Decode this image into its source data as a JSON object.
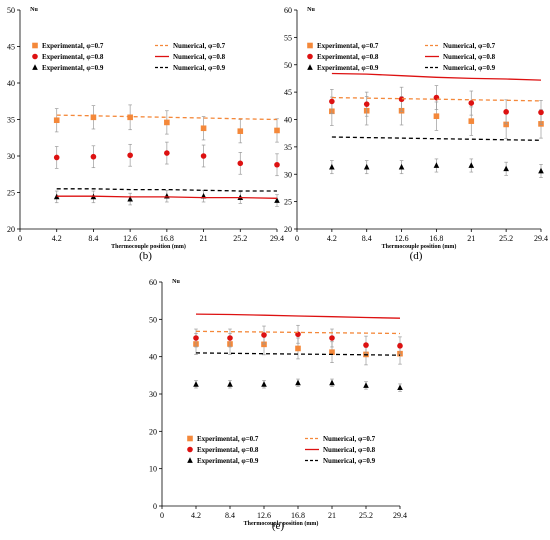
{
  "chart_data": [
    {
      "id": "b",
      "type": "scatter",
      "caption": "(b)",
      "ylabel": "Nu",
      "xlabel": "Thermocouple position (mm)",
      "xlim": [
        0,
        29.4
      ],
      "ylim": [
        20,
        50
      ],
      "xticks": [
        "0",
        "4.2",
        "8.4",
        "12.6",
        "16.8",
        "21",
        "25.2",
        "29.4"
      ],
      "yticks": [
        "20",
        "25",
        "30",
        "35",
        "40",
        "45",
        "50"
      ],
      "x": [
        4.2,
        8.4,
        12.6,
        16.8,
        21,
        25.2,
        29.4
      ],
      "series": [
        {
          "name": "Experimental, φ=0.7",
          "kind": "experimental",
          "marker": "square",
          "color": "#f4883a",
          "values": [
            34.9,
            35.3,
            35.3,
            34.6,
            33.8,
            33.4,
            33.5
          ],
          "err": [
            1.6,
            1.6,
            1.7,
            1.6,
            1.6,
            1.6,
            1.6
          ]
        },
        {
          "name": "Experimental, φ=0.8",
          "kind": "experimental",
          "marker": "circle",
          "color": "#dd1111",
          "values": [
            29.8,
            29.9,
            30.1,
            30.4,
            30.0,
            29.0,
            28.8
          ],
          "err": [
            1.5,
            1.5,
            1.5,
            1.5,
            1.5,
            1.5,
            1.5
          ]
        },
        {
          "name": "Experimental, φ=0.9",
          "kind": "experimental",
          "marker": "triangle",
          "color": "#000000",
          "values": [
            24.4,
            24.4,
            24.1,
            24.5,
            24.5,
            24.3,
            23.9
          ],
          "err": [
            0.8,
            0.8,
            0.8,
            0.8,
            0.8,
            0.8,
            0.8
          ]
        },
        {
          "name": "Numerical, φ=0.7",
          "kind": "numerical",
          "dash": "4,3",
          "color": "#f4883a",
          "values": [
            35.6,
            35.5,
            35.4,
            35.3,
            35.2,
            35.1,
            35.0
          ]
        },
        {
          "name": "Numerical, φ=0.8",
          "kind": "numerical",
          "dash": "",
          "color": "#dd1111",
          "values": [
            24.5,
            24.5,
            24.4,
            24.4,
            24.3,
            24.3,
            24.2
          ]
        },
        {
          "name": "Numerical, φ=0.9",
          "kind": "numerical",
          "dash": "4,3",
          "color": "#000000",
          "values": [
            25.5,
            25.5,
            25.4,
            25.4,
            25.3,
            25.2,
            25.2
          ]
        }
      ]
    },
    {
      "id": "d",
      "type": "scatter",
      "caption": "(d)",
      "ylabel": "Nu",
      "xlabel": "Thermocouple position (mm)",
      "xlim": [
        0,
        29.4
      ],
      "ylim": [
        20,
        60
      ],
      "xticks": [
        "0",
        "4.2",
        "8.4",
        "12.6",
        "16.8",
        "21",
        "25.2",
        "29.4"
      ],
      "yticks": [
        "20",
        "25",
        "30",
        "35",
        "40",
        "45",
        "50",
        "55",
        "60"
      ],
      "x": [
        4.2,
        8.4,
        12.6,
        16.8,
        21,
        25.2,
        29.4
      ],
      "series": [
        {
          "name": "Experimental, φ=0.7",
          "kind": "experimental",
          "marker": "square",
          "color": "#f4883a",
          "values": [
            41.5,
            41.6,
            41.6,
            40.6,
            39.7,
            39.1,
            39.2
          ],
          "err": [
            2.6,
            2.6,
            2.6,
            2.6,
            2.6,
            2.6,
            2.6
          ]
        },
        {
          "name": "Experimental, φ=0.8",
          "kind": "experimental",
          "marker": "circle",
          "color": "#dd1111",
          "values": [
            43.3,
            42.8,
            43.7,
            44.0,
            43.0,
            41.4,
            41.3
          ],
          "err": [
            2.2,
            2.2,
            2.2,
            2.2,
            2.2,
            2.2,
            2.2
          ]
        },
        {
          "name": "Experimental, φ=0.9",
          "kind": "experimental",
          "marker": "triangle",
          "color": "#000000",
          "values": [
            31.3,
            31.3,
            31.3,
            31.6,
            31.6,
            31.0,
            30.6
          ],
          "err": [
            1.2,
            1.2,
            1.2,
            1.2,
            1.2,
            1.2,
            1.2
          ]
        },
        {
          "name": "Numerical, φ=0.7",
          "kind": "numerical",
          "dash": "4,3",
          "color": "#f4883a",
          "values": [
            44.0,
            43.9,
            43.8,
            43.7,
            43.6,
            43.5,
            43.4
          ]
        },
        {
          "name": "Numerical, φ=0.8",
          "kind": "numerical",
          "dash": "",
          "color": "#dd1111",
          "values": [
            48.4,
            48.3,
            48.0,
            47.7,
            47.5,
            47.4,
            47.2
          ]
        },
        {
          "name": "Numerical, φ=0.9",
          "kind": "numerical",
          "dash": "4,3",
          "color": "#000000",
          "values": [
            36.8,
            36.7,
            36.6,
            36.5,
            36.4,
            36.3,
            36.2
          ]
        }
      ]
    },
    {
      "id": "e",
      "type": "scatter",
      "caption": "(e)",
      "ylabel": "Nu",
      "xlabel": "Thermocouple position (mm)",
      "xlim": [
        0,
        29.4
      ],
      "ylim": [
        0,
        60
      ],
      "xticks": [
        "0",
        "4.2",
        "8.4",
        "12.6",
        "16.8",
        "21",
        "25.2",
        "29.4"
      ],
      "yticks": [
        "0",
        "10",
        "20",
        "30",
        "40",
        "50",
        "60"
      ],
      "x": [
        4.2,
        8.4,
        12.6,
        16.8,
        21,
        25.2,
        29.4
      ],
      "series": [
        {
          "name": "Experimental, φ=0.7",
          "kind": "experimental",
          "marker": "square",
          "color": "#f4883a",
          "values": [
            43.4,
            43.4,
            43.3,
            42.2,
            41.2,
            40.6,
            40.8
          ],
          "err": [
            2.8,
            2.8,
            2.8,
            2.8,
            2.8,
            2.8,
            2.8
          ]
        },
        {
          "name": "Experimental, φ=0.8",
          "kind": "experimental",
          "marker": "circle",
          "color": "#dd1111",
          "values": [
            45.0,
            45.0,
            45.8,
            46.0,
            45.0,
            43.1,
            42.9
          ],
          "err": [
            2.4,
            2.4,
            2.4,
            2.4,
            2.4,
            2.4,
            2.4
          ]
        },
        {
          "name": "Experimental, φ=0.9",
          "kind": "experimental",
          "marker": "triangle",
          "color": "#000000",
          "values": [
            32.6,
            32.6,
            32.6,
            33.0,
            33.0,
            32.3,
            31.7
          ],
          "err": [
            1.0,
            1.0,
            1.0,
            1.0,
            1.0,
            1.0,
            1.0
          ]
        },
        {
          "name": "Numerical, φ=0.7",
          "kind": "numerical",
          "dash": "4,3",
          "color": "#f4883a",
          "values": [
            46.8,
            46.7,
            46.6,
            46.5,
            46.4,
            46.3,
            46.2
          ]
        },
        {
          "name": "Numerical, φ=0.8",
          "kind": "numerical",
          "dash": "",
          "color": "#dd1111",
          "values": [
            51.4,
            51.3,
            51.1,
            50.9,
            50.7,
            50.5,
            50.3
          ]
        },
        {
          "name": "Numerical, φ=0.9",
          "kind": "numerical",
          "dash": "4,3",
          "color": "#000000",
          "values": [
            41.0,
            40.9,
            40.8,
            40.7,
            40.6,
            40.5,
            40.4
          ]
        }
      ]
    }
  ]
}
